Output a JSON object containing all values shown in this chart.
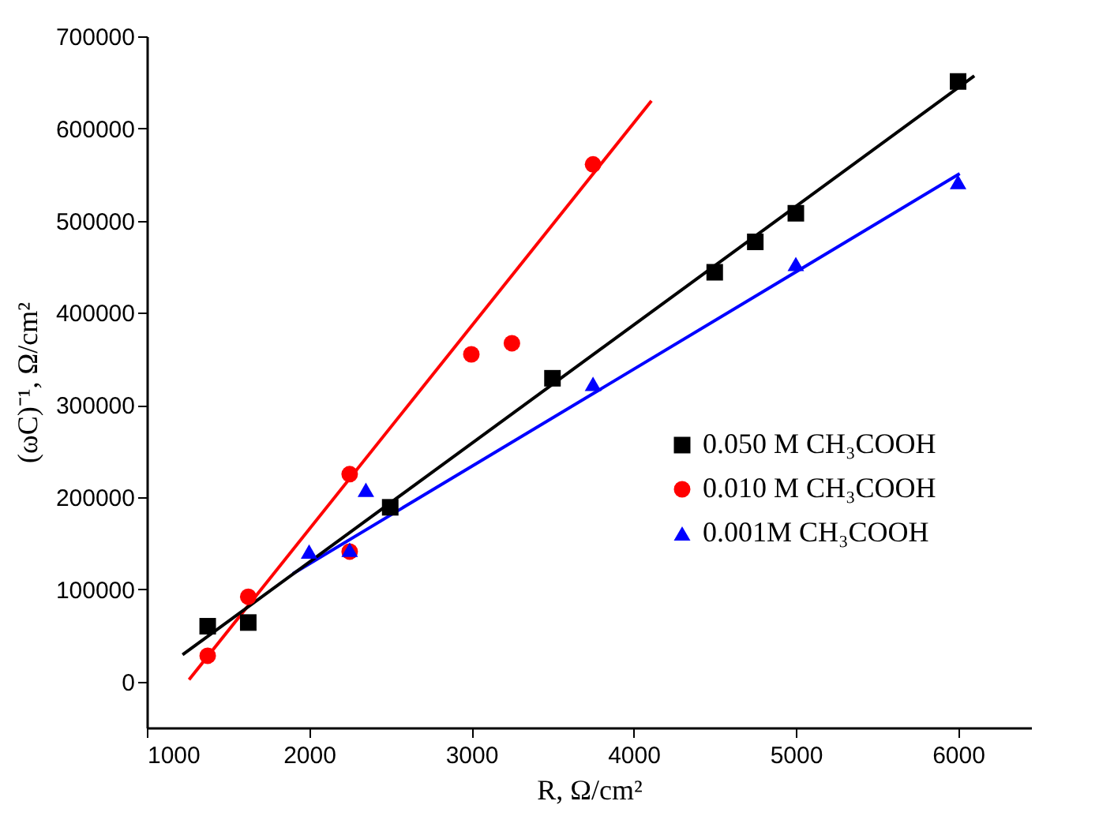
{
  "chart_data": {
    "type": "scatter",
    "xlabel": "R, Ω/cm²",
    "ylabel": "(ωC)⁻¹, Ω/cm²",
    "xlim": [
      1000,
      6450
    ],
    "ylim": [
      -50000,
      700000
    ],
    "xticks": [
      1000,
      2000,
      3000,
      4000,
      5000,
      6000
    ],
    "yticks": [
      0,
      100000,
      200000,
      300000,
      400000,
      500000,
      600000,
      700000
    ],
    "grid": false,
    "legend": "right",
    "series": [
      {
        "name": "0.050 M CH₃COOH",
        "marker": "square",
        "color": "#000000",
        "x": [
          1375,
          1625,
          2500,
          3500,
          4500,
          4750,
          5000,
          6000
        ],
        "values": [
          60000,
          64000,
          189000,
          329000,
          444000,
          477000,
          508000,
          651000
        ]
      },
      {
        "name": "0.010 M CH₃COOH",
        "marker": "circle",
        "color": "#ff0000",
        "x": [
          1375,
          1625,
          2250,
          2250,
          3000,
          3250,
          3750
        ],
        "values": [
          28000,
          92000,
          225000,
          141000,
          355000,
          367000,
          561000
        ]
      },
      {
        "name": "0.001M CH₃COOH",
        "marker": "triangle",
        "color": "#0000ff",
        "x": [
          2000,
          2250,
          2350,
          3750,
          5000,
          6000
        ],
        "values": [
          141000,
          143000,
          208000,
          323000,
          453000,
          542000
        ]
      },
      {
        "type": "line",
        "color": "#000000",
        "x": [
          1220,
          6100
        ],
        "values": [
          29000,
          657000
        ]
      },
      {
        "type": "line",
        "color": "#ff0000",
        "x": [
          1260,
          4110
        ],
        "values": [
          2000,
          630000
        ]
      },
      {
        "type": "line",
        "color": "#0000ff",
        "x": [
          1900,
          6010
        ],
        "values": [
          117000,
          551000
        ]
      }
    ]
  }
}
